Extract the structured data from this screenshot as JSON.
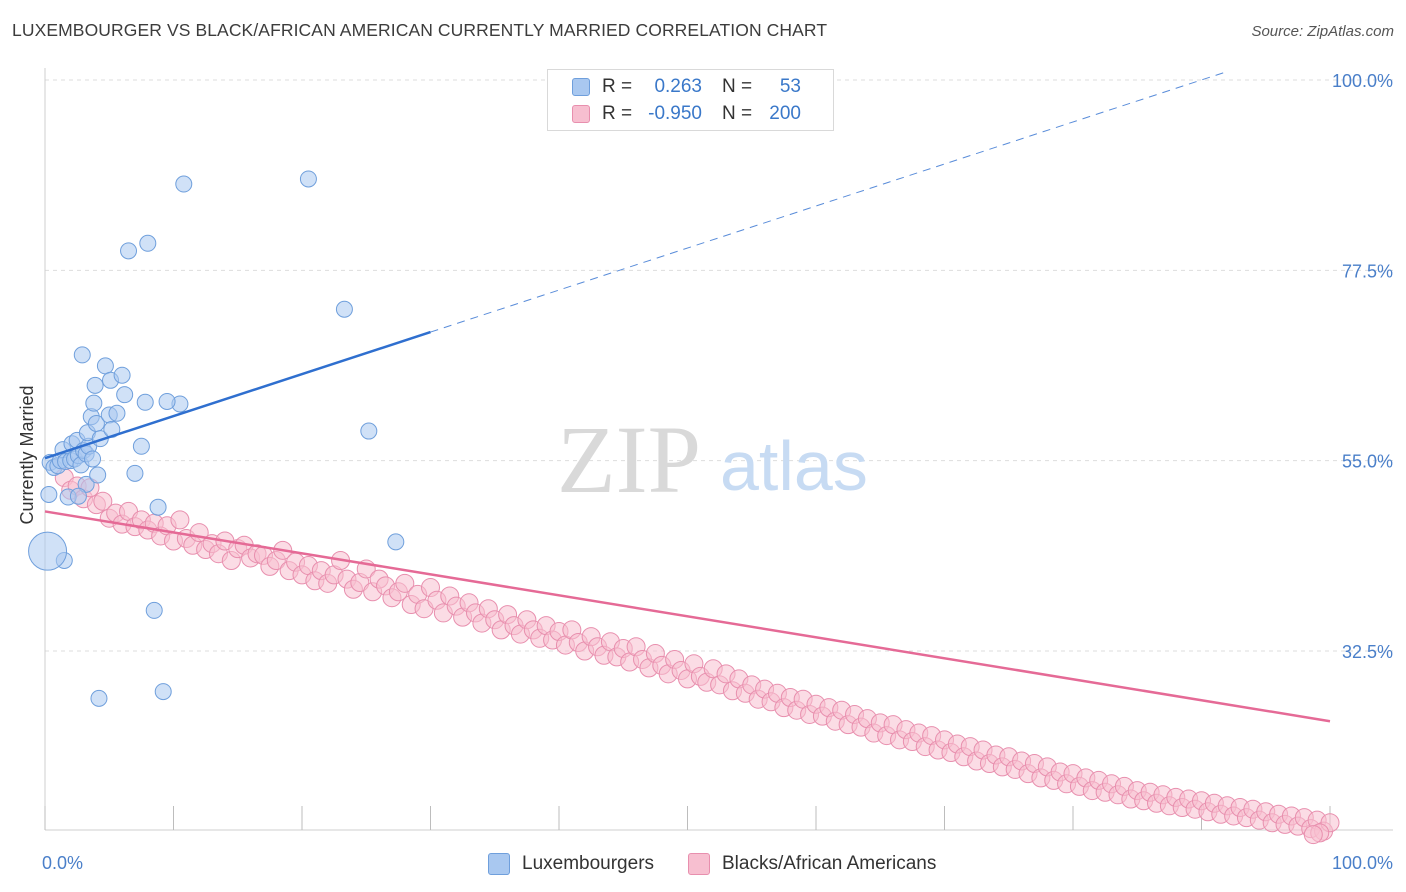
{
  "header": {
    "title": "LUXEMBOURGER VS BLACK/AFRICAN AMERICAN CURRENTLY MARRIED CORRELATION CHART",
    "source": "Source: ZipAtlas.com"
  },
  "watermark": {
    "zip": "ZIP",
    "atlas": "atlas"
  },
  "legend": {
    "rows": [
      {
        "r_label": "R =",
        "r_value": "0.263",
        "n_label": "N =",
        "n_value": "53",
        "color": "#a9c8f0",
        "border": "#6f9fdc"
      },
      {
        "r_label": "R =",
        "r_value": "-0.950",
        "n_label": "N =",
        "n_value": "200",
        "color": "#f7bfd0",
        "border": "#e88fae"
      }
    ]
  },
  "bottom_legend": [
    {
      "label": "Luxembourgers",
      "color": "#a9c8f0",
      "border": "#6f9fdc"
    },
    {
      "label": "Blacks/African Americans",
      "color": "#f7bfd0",
      "border": "#e88fae"
    }
  ],
  "chart_data": {
    "type": "scatter",
    "title": "LUXEMBOURGER VS BLACK/AFRICAN AMERICAN CURRENTLY MARRIED CORRELATION CHART",
    "xlabel": "",
    "ylabel": "Currently Married",
    "xlim": [
      0,
      100
    ],
    "ylim": [
      10,
      105
    ],
    "x_tick_labels": [
      "0.0%",
      "100.0%"
    ],
    "y_ticks": [
      32.5,
      55.0,
      77.5,
      100.0
    ],
    "y_tick_labels": [
      "32.5%",
      "55.0%",
      "77.5%",
      "100.0%"
    ],
    "grid": true,
    "legend_position": "top-center",
    "colors": {
      "blue_point": "#a9c8f0",
      "blue_edge": "#6f9fdc",
      "blue_line": "#2f6fcf",
      "pink_point": "#f7bfd0",
      "pink_edge": "#e88fae",
      "pink_line": "#e56a96",
      "tick_label": "#4a7fc9",
      "grid": "#dddddd"
    },
    "series": [
      {
        "name": "Luxembourgers",
        "r": 0.263,
        "n": 53,
        "trend": {
          "x": [
            0,
            30
          ],
          "y": [
            55.3,
            70.2
          ]
        },
        "trend_dashed": {
          "x": [
            30,
            92
          ],
          "y": [
            70.2,
            101.0
          ]
        },
        "points": [
          [
            0.4,
            54.8
          ],
          [
            0.7,
            54.2
          ],
          [
            1.0,
            54.4
          ],
          [
            1.2,
            55.0
          ],
          [
            1.4,
            56.3
          ],
          [
            1.6,
            54.9
          ],
          [
            2.0,
            55.0
          ],
          [
            2.1,
            57.0
          ],
          [
            2.3,
            55.2
          ],
          [
            2.5,
            57.4
          ],
          [
            2.6,
            55.6
          ],
          [
            2.8,
            54.5
          ],
          [
            3.0,
            56.2
          ],
          [
            3.2,
            55.8
          ],
          [
            3.4,
            56.7
          ],
          [
            3.2,
            52.2
          ],
          [
            1.8,
            50.7
          ],
          [
            2.6,
            50.8
          ],
          [
            0.3,
            51.0
          ],
          [
            1.5,
            43.2
          ],
          [
            3.3,
            58.3
          ],
          [
            3.6,
            60.2
          ],
          [
            3.8,
            61.8
          ],
          [
            4.0,
            59.4
          ],
          [
            4.3,
            57.6
          ],
          [
            5.0,
            60.4
          ],
          [
            5.6,
            60.6
          ],
          [
            5.2,
            58.7
          ],
          [
            3.7,
            55.2
          ],
          [
            4.1,
            53.3
          ],
          [
            3.9,
            63.9
          ],
          [
            4.7,
            66.2
          ],
          [
            5.1,
            64.5
          ],
          [
            6.0,
            65.1
          ],
          [
            6.2,
            62.8
          ],
          [
            7.8,
            61.9
          ],
          [
            10.5,
            61.7
          ],
          [
            9.5,
            62.0
          ],
          [
            7.5,
            56.7
          ],
          [
            7.0,
            53.5
          ],
          [
            8.8,
            49.5
          ],
          [
            2.9,
            67.5
          ],
          [
            6.5,
            79.8
          ],
          [
            8.0,
            80.7
          ],
          [
            10.8,
            87.7
          ],
          [
            20.5,
            88.3
          ],
          [
            23.3,
            72.9
          ],
          [
            25.2,
            58.5
          ],
          [
            27.3,
            45.4
          ],
          [
            8.5,
            37.3
          ],
          [
            9.2,
            27.7
          ],
          [
            4.2,
            26.9
          ],
          [
            0.2,
            44.3
          ]
        ]
      },
      {
        "name": "Blacks/African Americans",
        "r": -0.95,
        "n": 200,
        "trend": {
          "x": [
            0,
            100
          ],
          "y": [
            49.0,
            24.2
          ]
        },
        "points": [
          [
            1.5,
            53.0
          ],
          [
            2.0,
            51.5
          ],
          [
            2.5,
            52.0
          ],
          [
            3.0,
            50.5
          ],
          [
            3.5,
            51.8
          ],
          [
            4.0,
            49.8
          ],
          [
            4.5,
            50.2
          ],
          [
            5.0,
            48.2
          ],
          [
            5.5,
            48.8
          ],
          [
            6.0,
            47.5
          ],
          [
            6.5,
            49.0
          ],
          [
            7.0,
            47.2
          ],
          [
            7.5,
            48.0
          ],
          [
            8.0,
            46.8
          ],
          [
            8.5,
            47.6
          ],
          [
            9.0,
            46.1
          ],
          [
            9.5,
            47.3
          ],
          [
            10.0,
            45.5
          ],
          [
            10.5,
            48.0
          ],
          [
            11.0,
            45.8
          ],
          [
            11.5,
            45.0
          ],
          [
            12.0,
            46.5
          ],
          [
            12.5,
            44.5
          ],
          [
            13.0,
            45.2
          ],
          [
            13.5,
            44.0
          ],
          [
            14.0,
            45.5
          ],
          [
            14.5,
            43.2
          ],
          [
            15.0,
            44.6
          ],
          [
            15.5,
            45.0
          ],
          [
            16.0,
            43.5
          ],
          [
            16.5,
            44.0
          ],
          [
            17.0,
            43.8
          ],
          [
            17.5,
            42.5
          ],
          [
            18.0,
            43.2
          ],
          [
            18.5,
            44.4
          ],
          [
            19.0,
            42.0
          ],
          [
            19.5,
            43.0
          ],
          [
            20.0,
            41.5
          ],
          [
            20.5,
            42.6
          ],
          [
            21.0,
            40.8
          ],
          [
            21.5,
            42.0
          ],
          [
            22.0,
            40.5
          ],
          [
            22.5,
            41.5
          ],
          [
            23.0,
            43.2
          ],
          [
            23.5,
            41.0
          ],
          [
            24.0,
            39.8
          ],
          [
            24.5,
            40.6
          ],
          [
            25.0,
            42.2
          ],
          [
            25.5,
            39.5
          ],
          [
            26.0,
            41.0
          ],
          [
            26.5,
            40.2
          ],
          [
            27.0,
            38.8
          ],
          [
            27.5,
            39.5
          ],
          [
            28.0,
            40.5
          ],
          [
            28.5,
            38.0
          ],
          [
            29.0,
            39.2
          ],
          [
            29.5,
            37.5
          ],
          [
            30.0,
            40.0
          ],
          [
            30.5,
            38.5
          ],
          [
            31.0,
            37.0
          ],
          [
            31.5,
            39.0
          ],
          [
            32.0,
            37.8
          ],
          [
            32.5,
            36.5
          ],
          [
            33.0,
            38.2
          ],
          [
            33.5,
            37.0
          ],
          [
            34.0,
            35.8
          ],
          [
            34.5,
            37.5
          ],
          [
            35.0,
            36.2
          ],
          [
            35.5,
            35.0
          ],
          [
            36.0,
            36.8
          ],
          [
            36.5,
            35.5
          ],
          [
            37.0,
            34.5
          ],
          [
            37.5,
            36.2
          ],
          [
            38.0,
            35.0
          ],
          [
            38.5,
            34.0
          ],
          [
            39.0,
            35.5
          ],
          [
            39.5,
            33.8
          ],
          [
            40.0,
            34.8
          ],
          [
            40.5,
            33.2
          ],
          [
            41.0,
            35.0
          ],
          [
            41.5,
            33.5
          ],
          [
            42.0,
            32.5
          ],
          [
            42.5,
            34.2
          ],
          [
            43.0,
            33.0
          ],
          [
            43.5,
            32.0
          ],
          [
            44.0,
            33.6
          ],
          [
            44.5,
            31.8
          ],
          [
            45.0,
            32.8
          ],
          [
            45.5,
            31.2
          ],
          [
            46.0,
            33.0
          ],
          [
            46.5,
            31.5
          ],
          [
            47.0,
            30.5
          ],
          [
            47.5,
            32.2
          ],
          [
            48.0,
            30.8
          ],
          [
            48.5,
            29.8
          ],
          [
            49.0,
            31.5
          ],
          [
            49.5,
            30.2
          ],
          [
            50.0,
            29.2
          ],
          [
            50.5,
            31.0
          ],
          [
            51.0,
            29.5
          ],
          [
            51.5,
            28.8
          ],
          [
            52.0,
            30.4
          ],
          [
            52.5,
            28.5
          ],
          [
            53.0,
            29.8
          ],
          [
            53.5,
            27.8
          ],
          [
            54.0,
            29.2
          ],
          [
            54.5,
            27.5
          ],
          [
            55.0,
            28.5
          ],
          [
            55.5,
            26.8
          ],
          [
            56.0,
            28.0
          ],
          [
            56.5,
            26.5
          ],
          [
            57.0,
            27.5
          ],
          [
            57.5,
            25.8
          ],
          [
            58.0,
            27.0
          ],
          [
            58.5,
            25.5
          ],
          [
            59.0,
            26.8
          ],
          [
            59.5,
            25.0
          ],
          [
            60.0,
            26.2
          ],
          [
            60.5,
            24.8
          ],
          [
            61.0,
            25.8
          ],
          [
            61.5,
            24.2
          ],
          [
            62.0,
            25.5
          ],
          [
            62.5,
            23.8
          ],
          [
            63.0,
            25.0
          ],
          [
            63.5,
            23.5
          ],
          [
            64.0,
            24.5
          ],
          [
            64.5,
            22.8
          ],
          [
            65.0,
            24.0
          ],
          [
            65.5,
            22.5
          ],
          [
            66.0,
            23.8
          ],
          [
            66.5,
            22.0
          ],
          [
            67.0,
            23.2
          ],
          [
            67.5,
            21.8
          ],
          [
            68.0,
            22.8
          ],
          [
            68.5,
            21.2
          ],
          [
            69.0,
            22.5
          ],
          [
            69.5,
            20.8
          ],
          [
            70.0,
            22.0
          ],
          [
            70.5,
            20.5
          ],
          [
            71.0,
            21.5
          ],
          [
            71.5,
            20.0
          ],
          [
            72.0,
            21.2
          ],
          [
            72.5,
            19.5
          ],
          [
            73.0,
            20.8
          ],
          [
            73.5,
            19.2
          ],
          [
            74.0,
            20.2
          ],
          [
            74.5,
            18.8
          ],
          [
            75.0,
            20.0
          ],
          [
            75.5,
            18.5
          ],
          [
            76.0,
            19.5
          ],
          [
            76.5,
            18.0
          ],
          [
            77.0,
            19.2
          ],
          [
            77.5,
            17.5
          ],
          [
            78.0,
            18.8
          ],
          [
            78.5,
            17.2
          ],
          [
            79.0,
            18.2
          ],
          [
            79.5,
            16.8
          ],
          [
            80.0,
            18.0
          ],
          [
            80.5,
            16.5
          ],
          [
            81.0,
            17.5
          ],
          [
            81.5,
            16.0
          ],
          [
            82.0,
            17.2
          ],
          [
            82.5,
            15.8
          ],
          [
            83.0,
            16.8
          ],
          [
            83.5,
            15.5
          ],
          [
            84.0,
            16.5
          ],
          [
            84.5,
            15.0
          ],
          [
            85.0,
            16.0
          ],
          [
            85.5,
            14.8
          ],
          [
            86.0,
            15.8
          ],
          [
            86.5,
            14.5
          ],
          [
            87.0,
            15.5
          ],
          [
            87.5,
            14.2
          ],
          [
            88.0,
            15.2
          ],
          [
            88.5,
            14.0
          ],
          [
            89.0,
            15.0
          ],
          [
            89.5,
            13.8
          ],
          [
            90.0,
            14.8
          ],
          [
            90.5,
            13.5
          ],
          [
            91.0,
            14.5
          ],
          [
            91.5,
            13.2
          ],
          [
            92.0,
            14.2
          ],
          [
            92.5,
            13.0
          ],
          [
            93.0,
            14.0
          ],
          [
            93.5,
            12.8
          ],
          [
            94.0,
            13.8
          ],
          [
            94.5,
            12.5
          ],
          [
            95.0,
            13.5
          ],
          [
            95.5,
            12.2
          ],
          [
            96.0,
            13.2
          ],
          [
            96.5,
            12.0
          ],
          [
            97.0,
            13.0
          ],
          [
            97.5,
            11.8
          ],
          [
            98.0,
            12.8
          ],
          [
            98.5,
            11.5
          ],
          [
            99.0,
            12.5
          ],
          [
            99.5,
            11.2
          ],
          [
            100.0,
            12.2
          ],
          [
            99.2,
            11.0
          ],
          [
            98.7,
            10.8
          ]
        ]
      }
    ]
  }
}
